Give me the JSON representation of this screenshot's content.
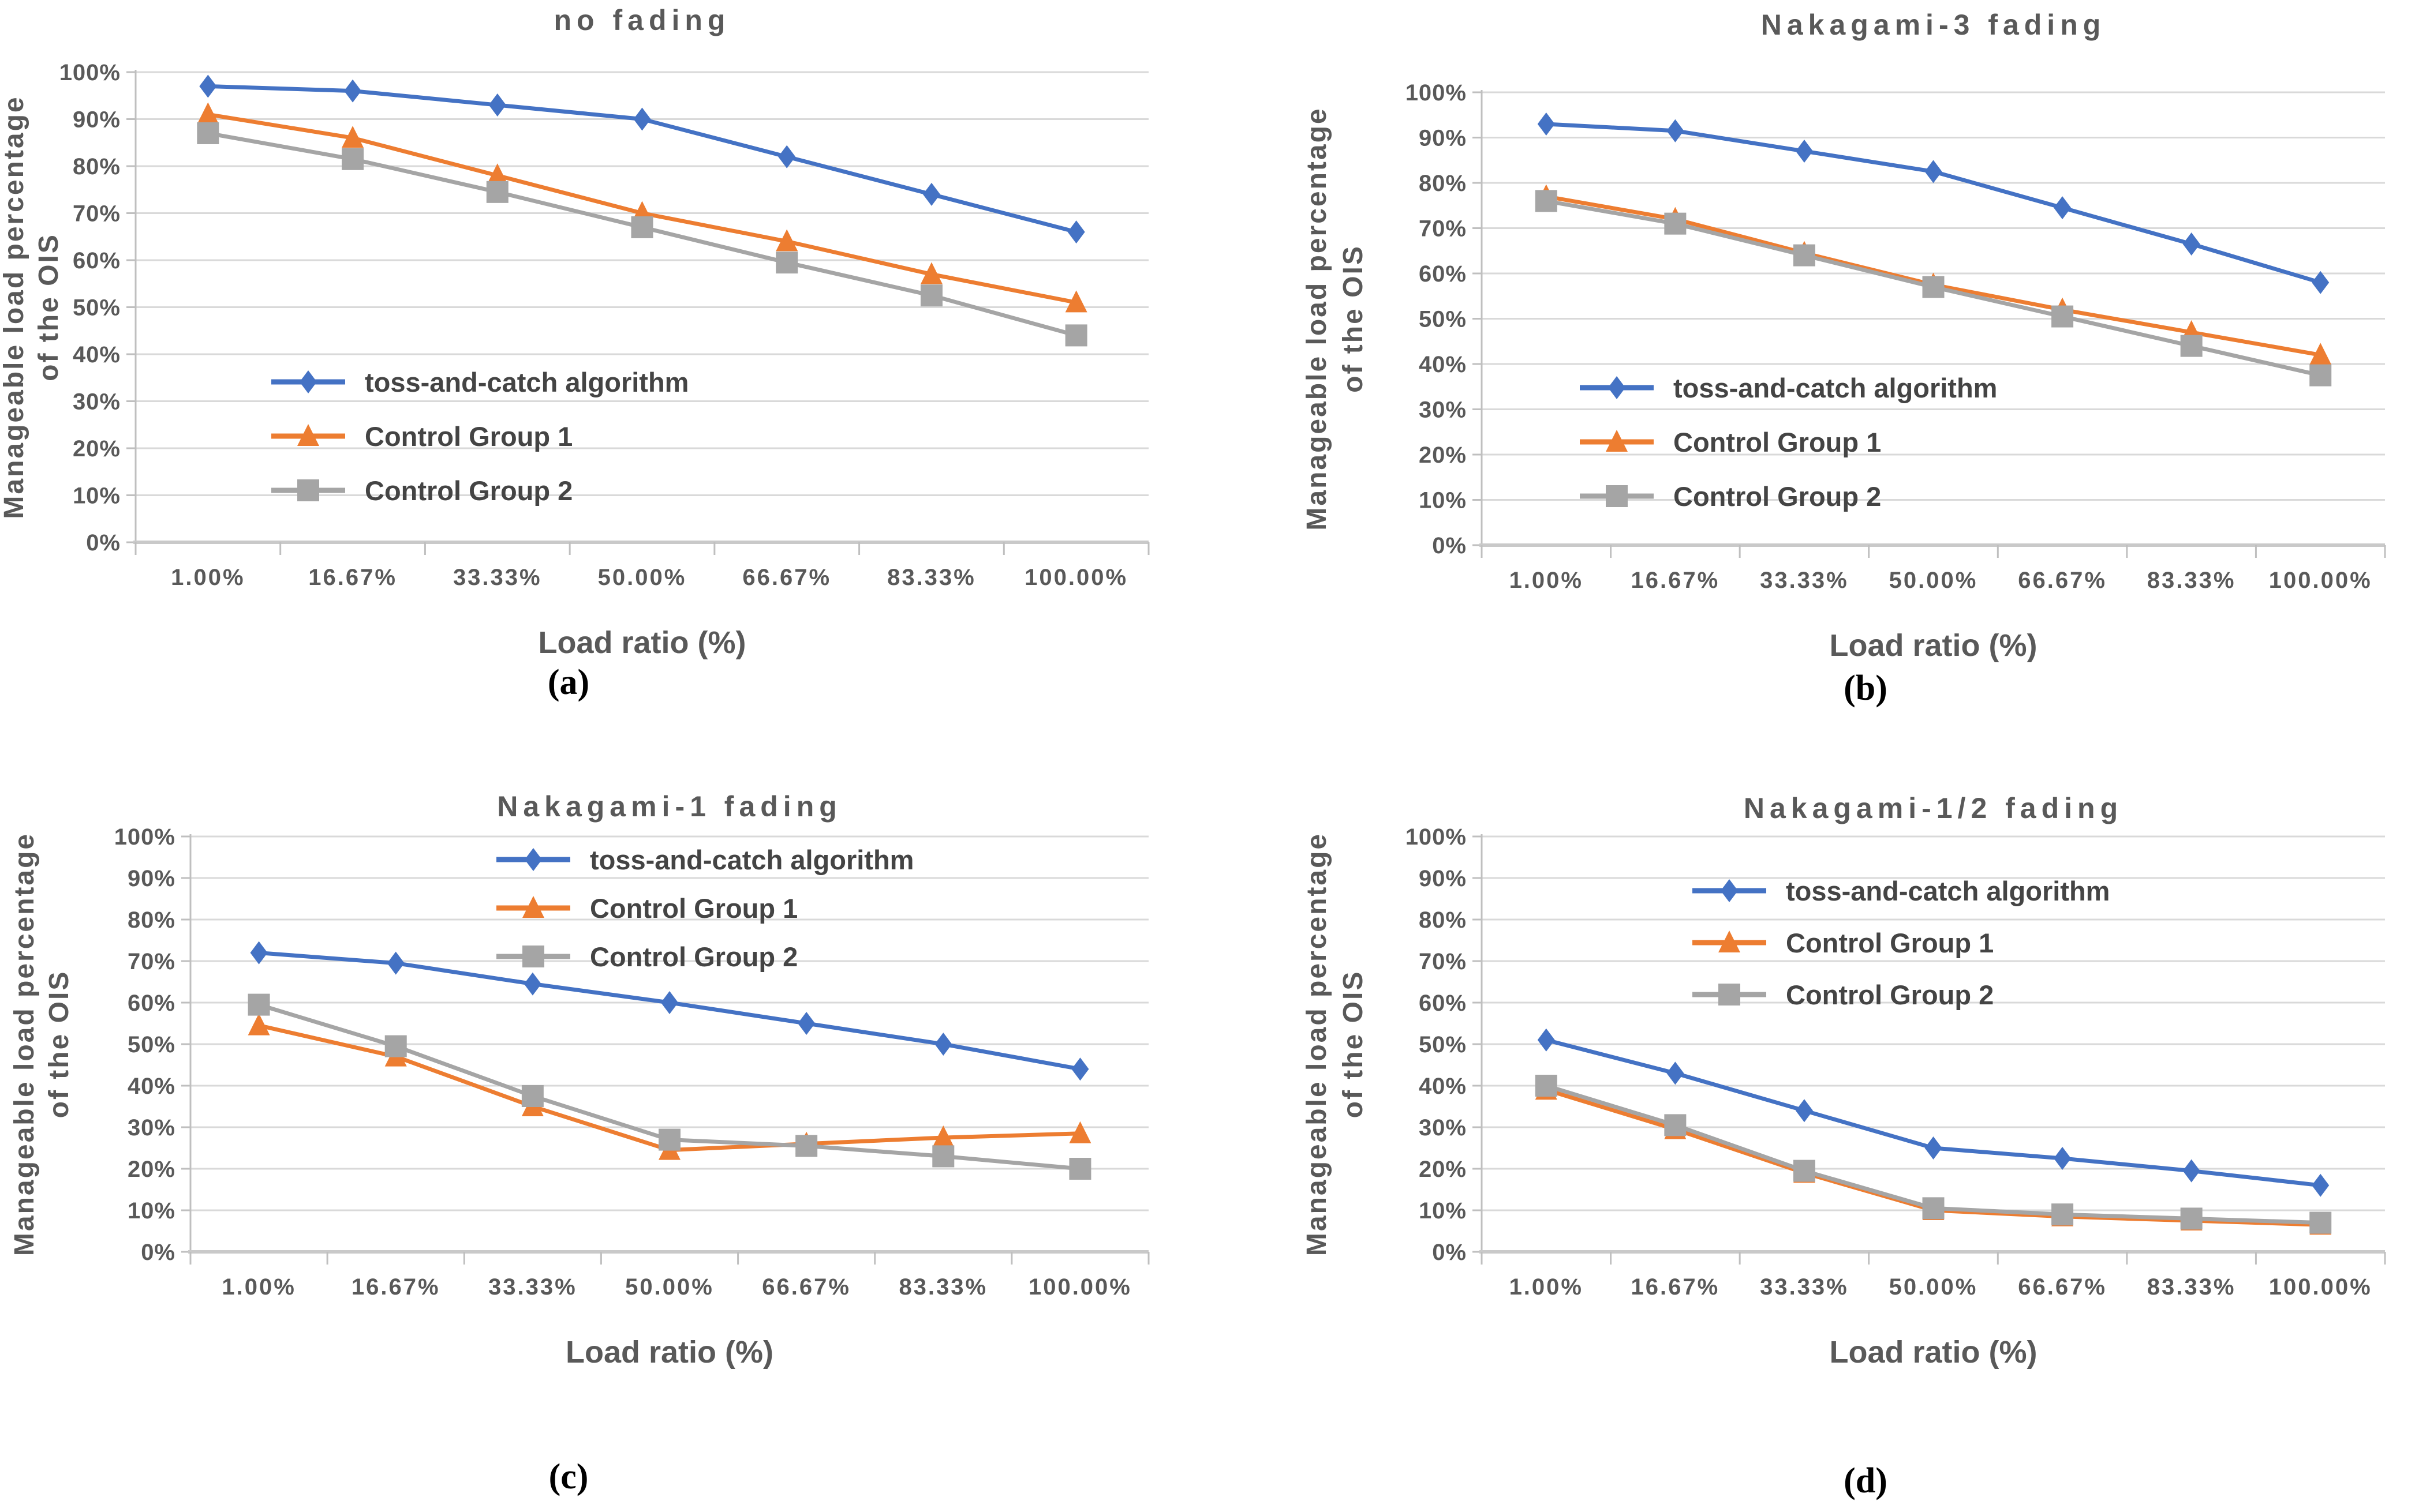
{
  "figure": {
    "background": "#ffffff",
    "grid_color": "#d9d9d9",
    "axis_color": "#bfbfbf",
    "tick_text_color": "#595959",
    "axis_title_color": "#595959",
    "title_color": "#595959",
    "legend_text_color": "#444444",
    "series_palette": {
      "blue": "#4472C4",
      "orange": "#ED7D31",
      "gray": "#A5A5A5"
    }
  },
  "chart_data": [
    {
      "type": "line",
      "title": "no fading",
      "caption": "(a)",
      "xlabel": "Load ratio (%)",
      "ylabel_line1": "Manageable load percentage",
      "ylabel_line2": "of the OIS",
      "ylim": [
        0,
        100
      ],
      "ytick_labels": [
        "0%",
        "10%",
        "20%",
        "30%",
        "40%",
        "50%",
        "60%",
        "70%",
        "80%",
        "90%",
        "100%"
      ],
      "categories": [
        "1.00%",
        "16.67%",
        "33.33%",
        "50.00%",
        "66.67%",
        "83.33%",
        "100.00%"
      ],
      "grid": true,
      "legend_position": "inside-lower-left",
      "series": [
        {
          "name": "toss-and-catch algorithm",
          "color": "#4472C4",
          "marker": "diamond",
          "values": [
            97,
            96,
            93,
            90,
            82,
            74,
            66
          ]
        },
        {
          "name": "Control Group 1",
          "color": "#ED7D31",
          "marker": "triangle",
          "values": [
            91,
            86,
            78,
            70,
            64,
            57,
            51
          ]
        },
        {
          "name": "Control Group 2",
          "color": "#A5A5A5",
          "marker": "square",
          "values": [
            87,
            81.5,
            74.5,
            67,
            59.5,
            52.5,
            44
          ]
        }
      ]
    },
    {
      "type": "line",
      "title": "Nakagami-3 fading",
      "caption": "(b)",
      "xlabel": "Load ratio (%)",
      "ylabel_line1": "Manageable load percentage",
      "ylabel_line2": "of the OIS",
      "ylim": [
        0,
        100
      ],
      "ytick_labels": [
        "0%",
        "10%",
        "20%",
        "30%",
        "40%",
        "50%",
        "60%",
        "70%",
        "80%",
        "90%",
        "100%"
      ],
      "categories": [
        "1.00%",
        "16.67%",
        "33.33%",
        "50.00%",
        "66.67%",
        "83.33%",
        "100.00%"
      ],
      "grid": true,
      "legend_position": "inside-lower-left",
      "series": [
        {
          "name": "toss-and-catch algorithm",
          "color": "#4472C4",
          "marker": "diamond",
          "values": [
            93,
            91.5,
            87,
            82.5,
            74.5,
            66.5,
            58
          ]
        },
        {
          "name": "Control Group 1",
          "color": "#ED7D31",
          "marker": "triangle",
          "values": [
            77,
            72,
            64.5,
            57.5,
            52,
            47,
            42
          ]
        },
        {
          "name": "Control Group 2",
          "color": "#A5A5A5",
          "marker": "square",
          "values": [
            76,
            71,
            64,
            57,
            50.5,
            44,
            37.5
          ]
        }
      ]
    },
    {
      "type": "line",
      "title": "Nakagami-1 fading",
      "caption": "(c)",
      "xlabel": "Load ratio (%)",
      "ylabel_line1": "Manageable load percentage",
      "ylabel_line2": "of the OIS",
      "ylim": [
        0,
        100
      ],
      "ytick_labels": [
        "0%",
        "10%",
        "20%",
        "30%",
        "40%",
        "50%",
        "60%",
        "70%",
        "80%",
        "90%",
        "100%"
      ],
      "categories": [
        "1.00%",
        "16.67%",
        "33.33%",
        "50.00%",
        "66.67%",
        "83.33%",
        "100.00%"
      ],
      "grid": true,
      "legend_position": "inside-upper-middle",
      "series": [
        {
          "name": "toss-and-catch algorithm",
          "color": "#4472C4",
          "marker": "diamond",
          "values": [
            72,
            69.5,
            64.5,
            60,
            55,
            50,
            44
          ]
        },
        {
          "name": "Control Group 1",
          "color": "#ED7D31",
          "marker": "triangle",
          "values": [
            54.5,
            47,
            35,
            24.5,
            26,
            27.5,
            28.5
          ]
        },
        {
          "name": "Control Group 2",
          "color": "#A5A5A5",
          "marker": "square",
          "values": [
            59.5,
            49.5,
            37.5,
            27,
            25.5,
            23,
            20
          ]
        }
      ]
    },
    {
      "type": "line",
      "title": "Nakagami-1/2 fading",
      "caption": "(d)",
      "xlabel": "Load ratio (%)",
      "ylabel_line1": "Manageable load percentage",
      "ylabel_line2": "of the OIS",
      "ylim": [
        0,
        100
      ],
      "ytick_labels": [
        "0%",
        "10%",
        "20%",
        "30%",
        "40%",
        "50%",
        "60%",
        "70%",
        "80%",
        "90%",
        "100%"
      ],
      "categories": [
        "1.00%",
        "16.67%",
        "33.33%",
        "50.00%",
        "66.67%",
        "83.33%",
        "100.00%"
      ],
      "grid": true,
      "legend_position": "inside-upper-middle",
      "series": [
        {
          "name": "toss-and-catch algorithm",
          "color": "#4472C4",
          "marker": "diamond",
          "values": [
            51,
            43,
            34,
            25,
            22.5,
            19.5,
            16
          ]
        },
        {
          "name": "Control Group 1",
          "color": "#ED7D31",
          "marker": "triangle",
          "values": [
            39,
            29.5,
            19,
            10,
            8.5,
            7.5,
            6.5
          ]
        },
        {
          "name": "Control Group 2",
          "color": "#A5A5A5",
          "marker": "square",
          "values": [
            40,
            30.5,
            19.5,
            10.5,
            9,
            8,
            7
          ]
        }
      ]
    }
  ]
}
